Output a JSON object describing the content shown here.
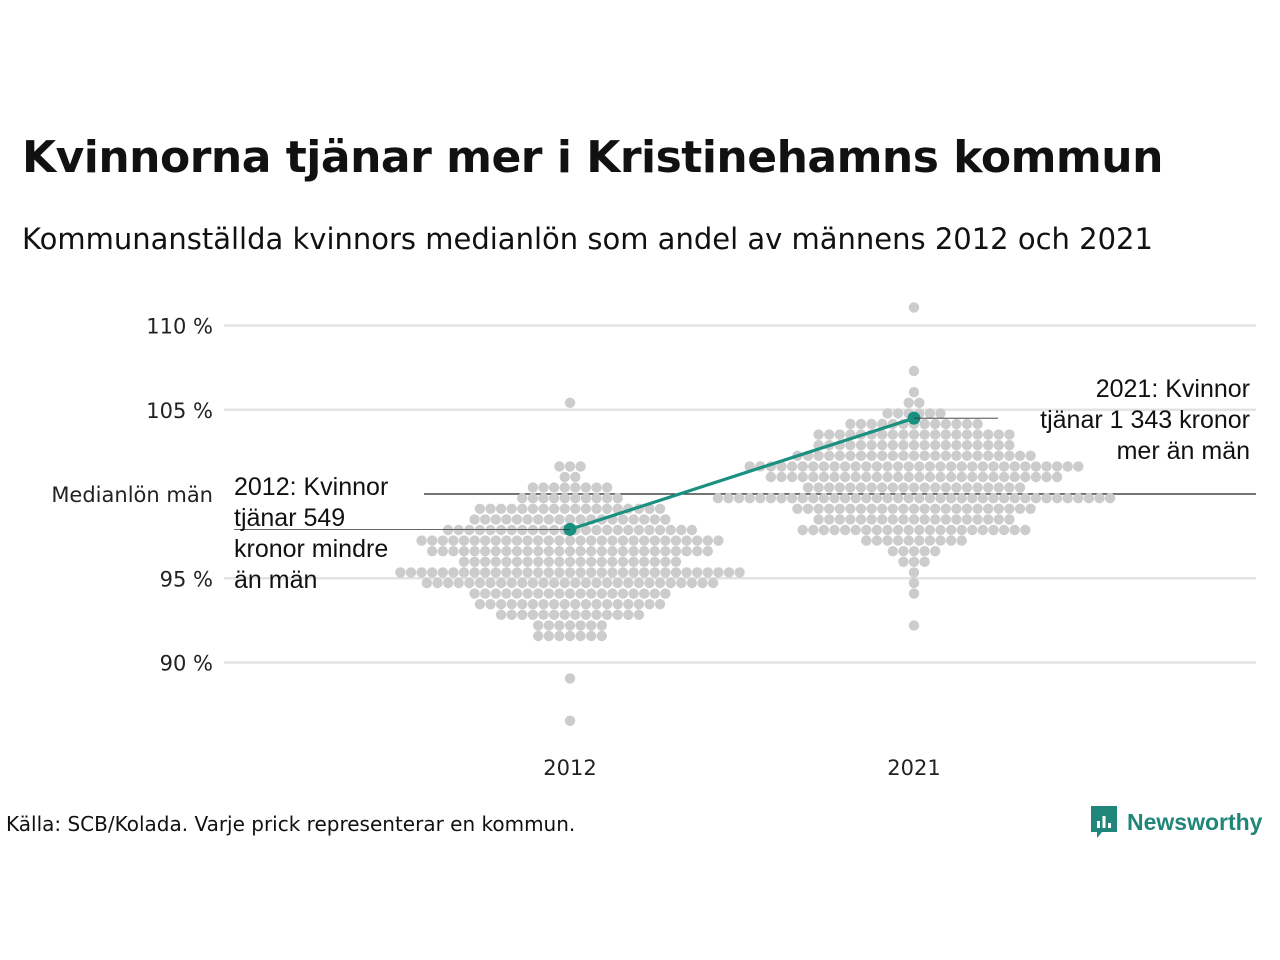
{
  "title": "Kvinnorna tjänar mer i Kristinehamns kommun",
  "subtitle": "Kommunanställda kvinnors medianlön som andel av männens 2012 och 2021",
  "source": "Källa: SCB/Kolada. Varje prick representerar en kommun.",
  "brand": {
    "name": "Newsworthy",
    "logo_icon": "newsworthy-logo-icon"
  },
  "colors": {
    "highlight": "#1a9080",
    "dots": "#cccccc",
    "grid": "#e3e3e3",
    "reference": "#222222"
  },
  "chart_data": {
    "type": "scatter",
    "subtype": "beeswarm",
    "categories": [
      "2012",
      "2021"
    ],
    "y_tick_values": [
      90,
      95,
      105,
      110
    ],
    "y_tick_labels": [
      "90 %",
      "95 %",
      "105 %",
      "110 %"
    ],
    "ylim": [
      86,
      112
    ],
    "reference_line": {
      "value": 100,
      "label": "Medianlön män"
    },
    "highlight": {
      "values": [
        97.9,
        104.5
      ],
      "annotations": [
        {
          "category": "2012",
          "lines": [
            "2012: Kvinnor",
            "tjänar 549",
            "kronor mindre",
            "än män"
          ]
        },
        {
          "category": "2021",
          "lines": [
            "2021: Kvinnor",
            "tjänar 1 343 kronor",
            "mer än män"
          ]
        }
      ]
    },
    "distribution": [
      {
        "category": "2012",
        "count": 290,
        "center": 96.0,
        "spread": 2.4,
        "min": 86.6,
        "max": 105.2
      },
      {
        "category": "2021",
        "count": 290,
        "center": 100.6,
        "spread": 2.4,
        "min": 92.5,
        "max": 111.2
      }
    ],
    "grid": true,
    "legend": "none"
  }
}
